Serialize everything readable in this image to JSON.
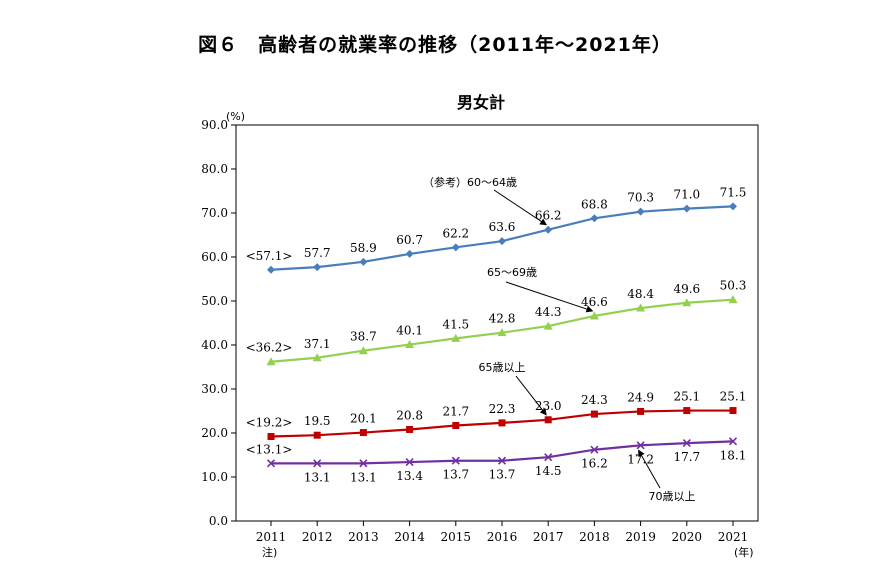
{
  "figure_title": "図６　高齢者の就業率の推移（2011年～2021年）",
  "chart_data": {
    "type": "line",
    "title": "男女計",
    "y_unit": "(%)",
    "x_unit": "(年)",
    "x_note": "注)",
    "ylim": [
      0,
      90
    ],
    "yticks": [
      "0.0",
      "10.0",
      "20.0",
      "30.0",
      "40.0",
      "50.0",
      "60.0",
      "70.0",
      "80.0",
      "90.0"
    ],
    "x": [
      "2011",
      "2012",
      "2013",
      "2014",
      "2015",
      "2016",
      "2017",
      "2018",
      "2019",
      "2020",
      "2021"
    ],
    "grid": false,
    "series": [
      {
        "name": "（参考）60～64歳",
        "color": "#4a7ebb",
        "marker": "diamond",
        "values": [
          57.1,
          57.7,
          58.9,
          60.7,
          62.2,
          63.6,
          66.2,
          68.8,
          70.3,
          71.0,
          71.5
        ],
        "labels": [
          "<57.1>",
          "57.7",
          "58.9",
          "60.7",
          "62.2",
          "63.6",
          "66.2",
          "68.8",
          "70.3",
          "71.0",
          "71.5"
        ]
      },
      {
        "name": "65～69歳",
        "color": "#92d050",
        "marker": "triangle",
        "values": [
          36.2,
          37.1,
          38.7,
          40.1,
          41.5,
          42.8,
          44.3,
          46.6,
          48.4,
          49.6,
          50.3
        ],
        "labels": [
          "<36.2>",
          "37.1",
          "38.7",
          "40.1",
          "41.5",
          "42.8",
          "44.3",
          "46.6",
          "48.4",
          "49.6",
          "50.3"
        ]
      },
      {
        "name": "65歳以上",
        "color": "#c00000",
        "marker": "square",
        "values": [
          19.2,
          19.5,
          20.1,
          20.8,
          21.7,
          22.3,
          23.0,
          24.3,
          24.9,
          25.1,
          25.1
        ],
        "labels": [
          "<19.2>",
          "19.5",
          "20.1",
          "20.8",
          "21.7",
          "22.3",
          "23.0",
          "24.3",
          "24.9",
          "25.1",
          "25.1"
        ]
      },
      {
        "name": "70歳以上",
        "color": "#7030a0",
        "marker": "x",
        "values": [
          13.1,
          13.1,
          13.1,
          13.4,
          13.7,
          13.7,
          14.5,
          16.2,
          17.2,
          17.7,
          18.1
        ],
        "labels": [
          "<13.1>",
          "13.1",
          "13.1",
          "13.4",
          "13.7",
          "13.7",
          "14.5",
          "16.2",
          "17.2",
          "17.7",
          "18.1"
        ]
      }
    ]
  }
}
